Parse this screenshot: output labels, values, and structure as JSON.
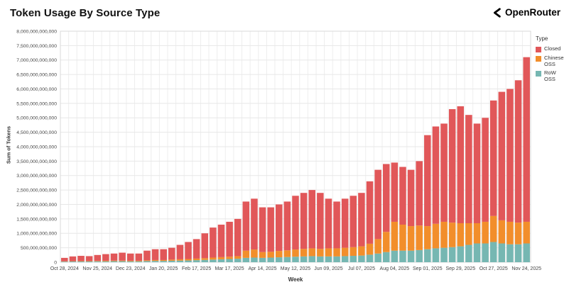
{
  "header": {
    "title": "Token Usage By Source Type",
    "brand": "OpenRouter"
  },
  "legend": {
    "title": "Type"
  },
  "chart_data": {
    "type": "bar",
    "stacked": true,
    "title": "Token Usage By Source Type",
    "xlabel": "Week",
    "ylabel": "Sum of Tokens",
    "ylim": [
      0,
      8000000000000
    ],
    "y_tick_step": 500000000000,
    "grid": true,
    "legend_position": "right",
    "values_unit": "billions_of_tokens",
    "y_max_billions": 8000,
    "y_tick_step_billions": 500,
    "y_tick_labels": [
      "0",
      "500,000,000,000",
      "1,000,000,000,000",
      "1,500,000,000,000",
      "2,000,000,000,000",
      "2,500,000,000,000",
      "3,000,000,000,000",
      "3,500,000,000,000",
      "4,000,000,000,000",
      "4,500,000,000,000",
      "5,000,000,000,000",
      "5,500,000,000,000",
      "6,000,000,000,000",
      "6,500,000,000,000",
      "7,000,000,000,000",
      "7,500,000,000,000",
      "8,000,000,000,000"
    ],
    "x_tick_every": 4,
    "x_tick_labels": [
      "Oct 28, 2024",
      "Nov 25, 2024",
      "Dec 23, 2024",
      "Jan 20, 2025",
      "Feb 17, 2025",
      "Mar 17, 2025",
      "Apr 14, 2025",
      "May 12, 2025",
      "Jun 09, 2025",
      "Jul 07, 2025",
      "Aug 04, 2025",
      "Sep 01, 2025",
      "Sep 29, 2025",
      "Oct 27, 2025",
      "Nov 24, 2025"
    ],
    "categories": [
      "Oct 28, 2024",
      "Nov 04, 2024",
      "Nov 11, 2024",
      "Nov 18, 2024",
      "Nov 25, 2024",
      "Dec 02, 2024",
      "Dec 09, 2024",
      "Dec 16, 2024",
      "Dec 23, 2024",
      "Dec 30, 2024",
      "Jan 06, 2025",
      "Jan 13, 2025",
      "Jan 20, 2025",
      "Jan 27, 2025",
      "Feb 03, 2025",
      "Feb 10, 2025",
      "Feb 17, 2025",
      "Feb 24, 2025",
      "Mar 03, 2025",
      "Mar 10, 2025",
      "Mar 17, 2025",
      "Mar 24, 2025",
      "Mar 31, 2025",
      "Apr 07, 2025",
      "Apr 14, 2025",
      "Apr 21, 2025",
      "Apr 28, 2025",
      "May 05, 2025",
      "May 12, 2025",
      "May 19, 2025",
      "May 26, 2025",
      "Jun 02, 2025",
      "Jun 09, 2025",
      "Jun 16, 2025",
      "Jun 23, 2025",
      "Jun 30, 2025",
      "Jul 07, 2025",
      "Jul 14, 2025",
      "Jul 21, 2025",
      "Jul 28, 2025",
      "Aug 04, 2025",
      "Aug 11, 2025",
      "Aug 18, 2025",
      "Aug 25, 2025",
      "Sep 01, 2025",
      "Sep 08, 2025",
      "Sep 15, 2025",
      "Sep 22, 2025",
      "Sep 29, 2025",
      "Oct 06, 2025",
      "Oct 13, 2025",
      "Oct 20, 2025",
      "Oct 27, 2025",
      "Nov 03, 2025",
      "Nov 10, 2025",
      "Nov 17, 2025",
      "Nov 24, 2025"
    ],
    "series": [
      {
        "name": "Closed",
        "color": "#e15759",
        "values": [
          120,
          165,
          180,
          170,
          205,
          230,
          245,
          275,
          250,
          250,
          335,
          375,
          375,
          410,
          500,
          590,
          675,
          860,
          1040,
          1125,
          1210,
          1290,
          1700,
          1760,
          1550,
          1540,
          1610,
          1690,
          1860,
          1940,
          2020,
          1940,
          1720,
          1620,
          1700,
          1780,
          1850,
          2160,
          2400,
          2350,
          2050,
          2000,
          1950,
          2230,
          3150,
          3370,
          3400,
          3930,
          4050,
          3750,
          3450,
          3600,
          4000,
          4450,
          4600,
          4930,
          5700
        ]
      },
      {
        "name": "Chinese OSS",
        "color": "#f28e2b",
        "values": [
          10,
          10,
          15,
          15,
          15,
          20,
          20,
          20,
          20,
          20,
          25,
          30,
          30,
          40,
          45,
          50,
          55,
          60,
          70,
          75,
          80,
          90,
          250,
          280,
          200,
          200,
          220,
          230,
          250,
          260,
          270,
          260,
          280,
          280,
          290,
          300,
          320,
          380,
          500,
          700,
          1000,
          900,
          850,
          850,
          800,
          850,
          900,
          850,
          800,
          750,
          700,
          750,
          900,
          800,
          780,
          750,
          750
        ]
      },
      {
        "name": "RoW OSS",
        "color": "#76b7b2",
        "values": [
          20,
          25,
          25,
          25,
          30,
          30,
          35,
          35,
          30,
          30,
          40,
          45,
          45,
          50,
          55,
          60,
          70,
          80,
          90,
          100,
          110,
          120,
          150,
          160,
          150,
          160,
          170,
          180,
          190,
          200,
          210,
          200,
          200,
          200,
          210,
          220,
          230,
          260,
          300,
          350,
          400,
          400,
          400,
          420,
          450,
          480,
          500,
          520,
          550,
          600,
          650,
          650,
          700,
          650,
          620,
          620,
          650
        ]
      }
    ]
  }
}
